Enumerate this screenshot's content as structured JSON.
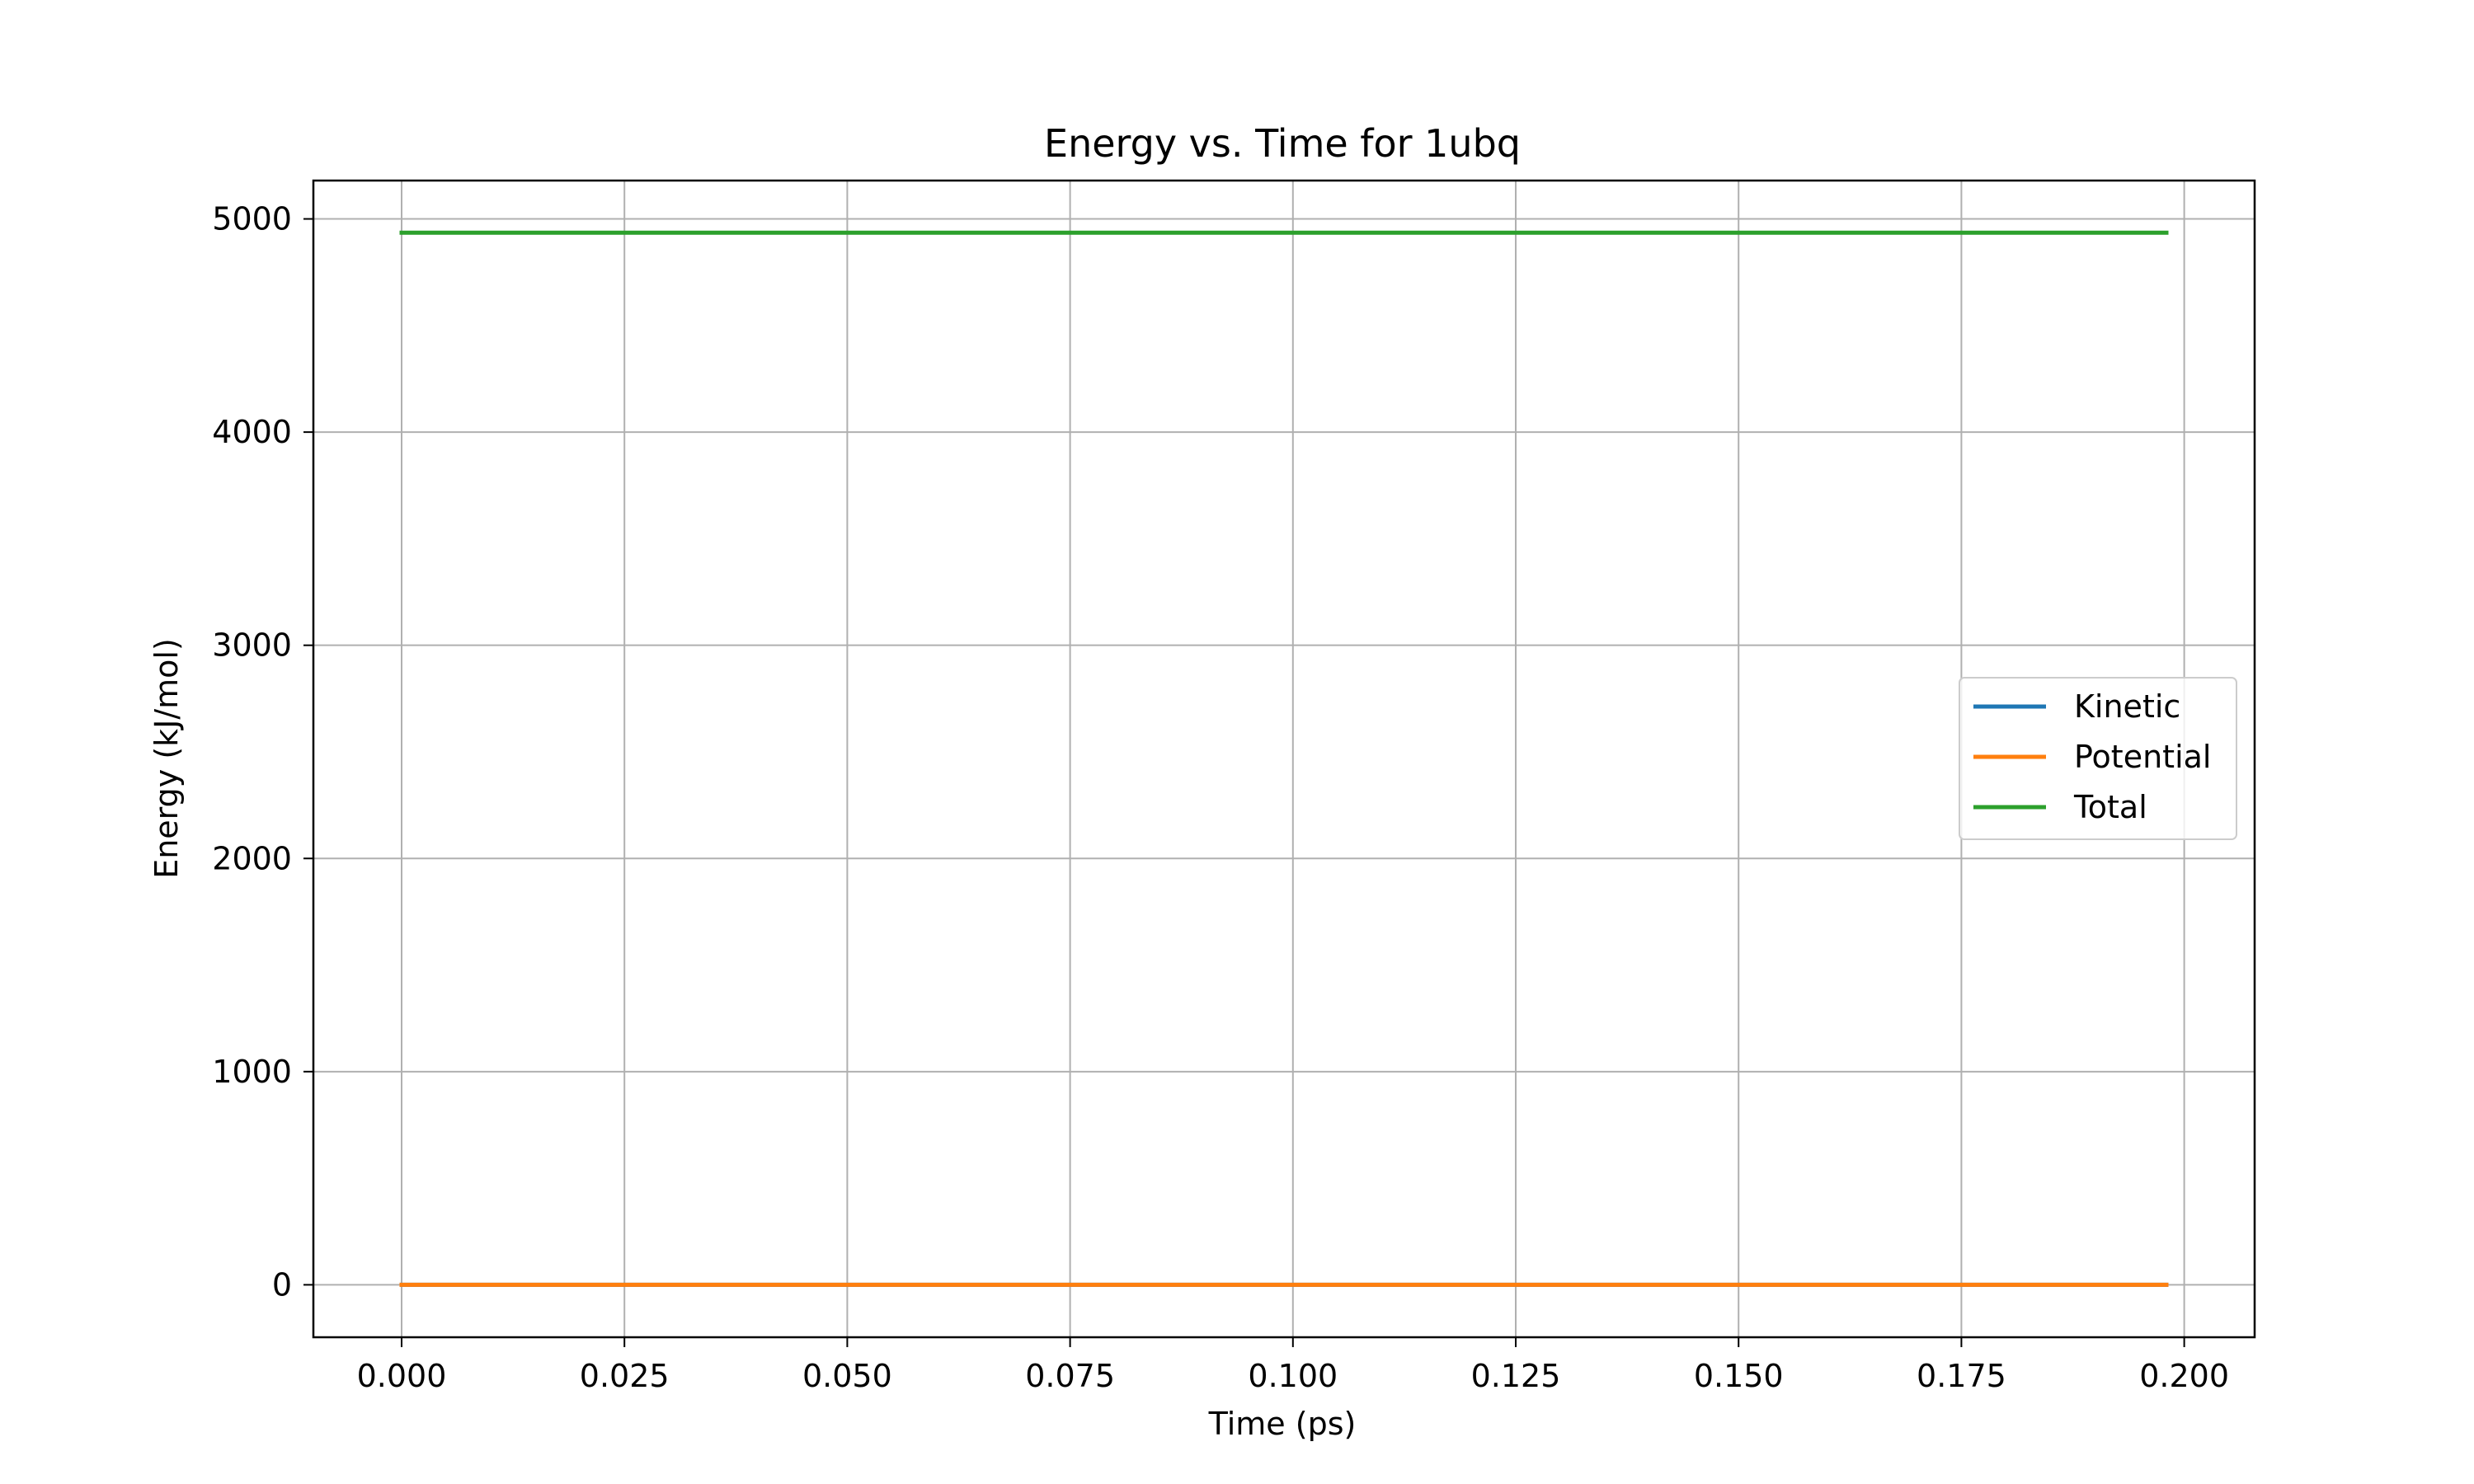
{
  "chart_data": {
    "type": "line",
    "title": "Energy vs. Time for 1ubq",
    "xlabel": "Time (ps)",
    "ylabel": "Energy (kJ/mol)",
    "xlim": [
      -0.0099,
      0.2079
    ],
    "ylim": [
      -246,
      5180
    ],
    "x_ticks": [
      0.0,
      0.025,
      0.05,
      0.075,
      0.1,
      0.125,
      0.15,
      0.175,
      0.2
    ],
    "x_tick_labels": [
      "0.000",
      "0.025",
      "0.050",
      "0.075",
      "0.100",
      "0.125",
      "0.150",
      "0.175",
      "0.200"
    ],
    "y_ticks": [
      0,
      1000,
      2000,
      3000,
      4000,
      5000
    ],
    "y_tick_labels": [
      "0",
      "1000",
      "2000",
      "3000",
      "4000",
      "5000"
    ],
    "grid": true,
    "legend_position": "center-right",
    "x": [
      0.0,
      0.198
    ],
    "series": [
      {
        "name": "Kinetic",
        "color": "#1f77b4",
        "values": [
          0,
          0
        ]
      },
      {
        "name": "Potential",
        "color": "#ff7f0e",
        "values": [
          0,
          0
        ]
      },
      {
        "name": "Total",
        "color": "#2ca02c",
        "values": [
          4935,
          4935
        ]
      }
    ]
  }
}
